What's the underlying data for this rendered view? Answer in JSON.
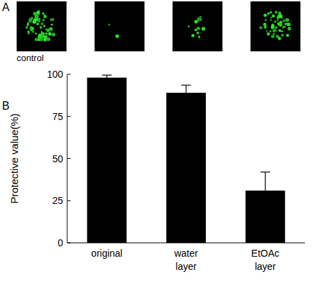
{
  "panel_a": {
    "label": "A",
    "image_count": 4,
    "captions": [
      "control",
      null,
      null,
      null
    ]
  },
  "panel_b": {
    "label": "B"
  },
  "chart_data": {
    "type": "bar",
    "y_label": "Protective value(%)",
    "categories": [
      "original",
      "water layer",
      "EtOAc layer"
    ],
    "values": [
      98,
      89,
      31
    ],
    "errors": [
      1.5,
      4.5,
      11
    ],
    "color": "#000000",
    "ylim": [
      0,
      100
    ],
    "yticks": [
      0,
      25,
      50,
      75,
      100
    ],
    "grid": false
  }
}
